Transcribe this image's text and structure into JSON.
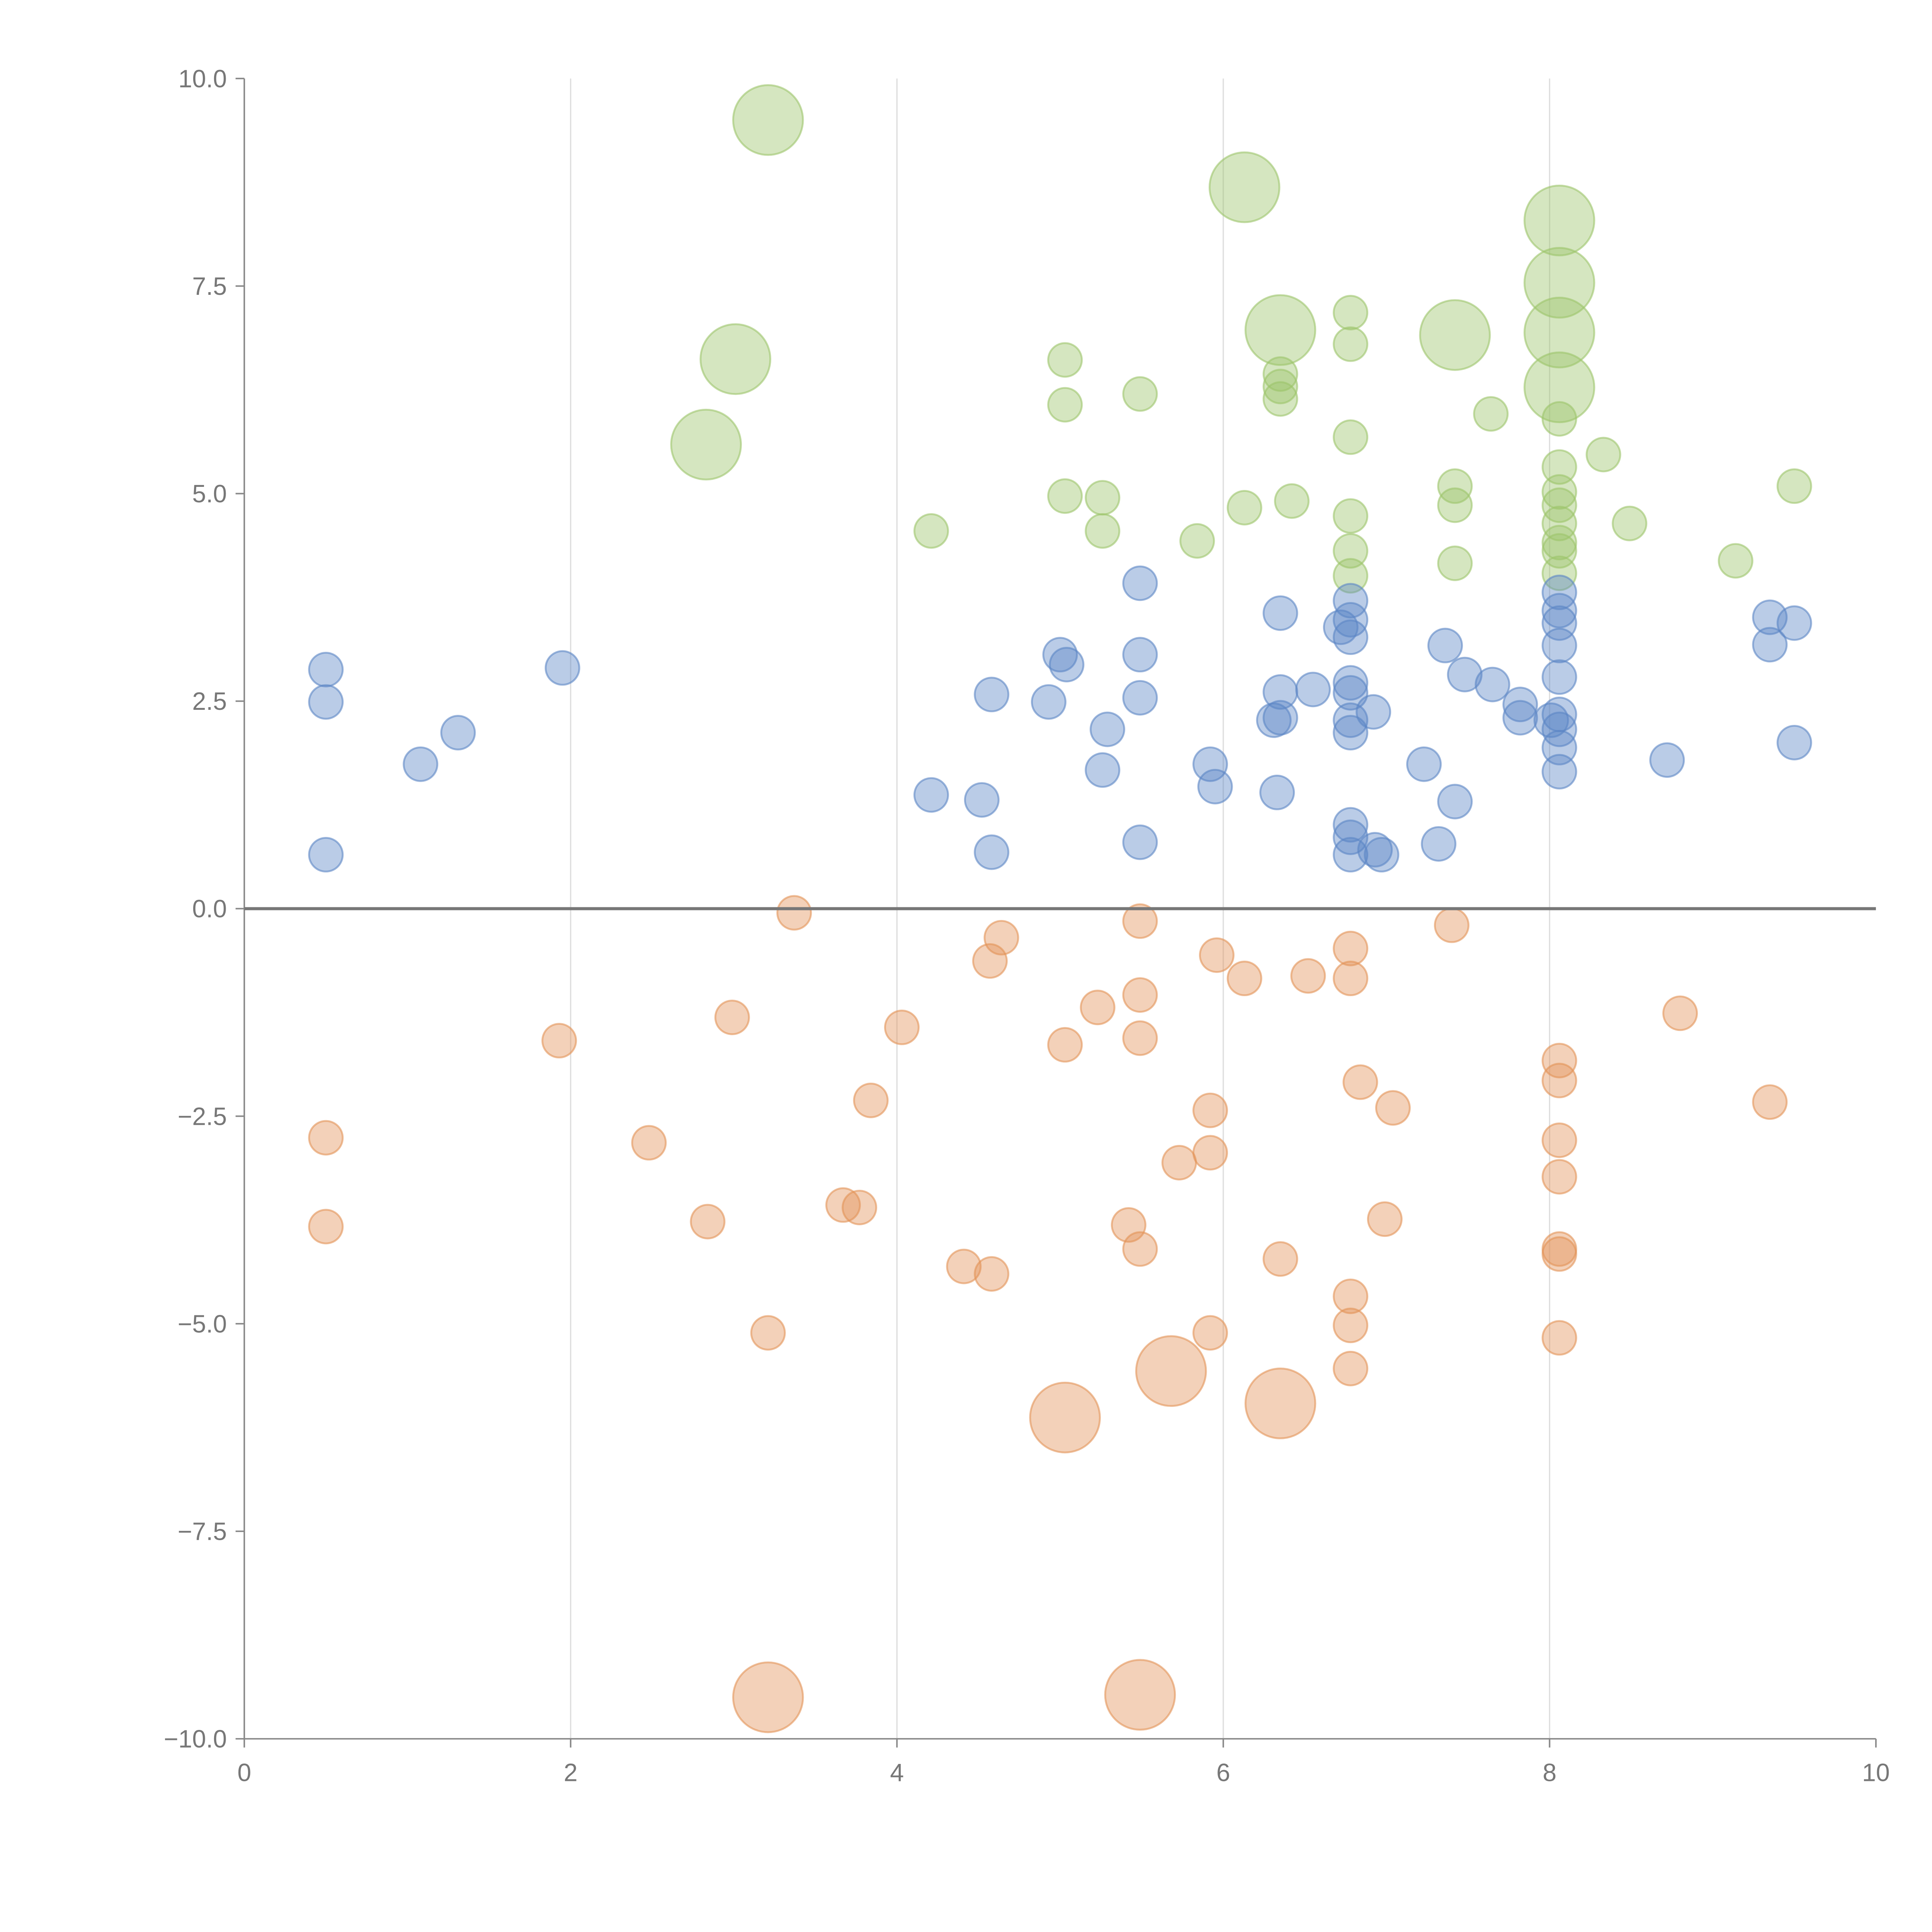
{
  "chart_data": {
    "type": "scatter",
    "title": "",
    "xlabel": "",
    "ylabel": "",
    "xlim": [
      0,
      10
    ],
    "ylim": [
      -10,
      10
    ],
    "x_ticks": [
      "0",
      "2",
      "4",
      "6",
      "8",
      "10"
    ],
    "x_tick_values": [
      0,
      2,
      4,
      6,
      8,
      10
    ],
    "y_ticks": [
      "10.0",
      "7.5",
      "5.0",
      "2.5",
      "0.0",
      "−2.5",
      "−5.0",
      "−7.5",
      "−10.0"
    ],
    "y_tick_values": [
      10,
      7.5,
      5,
      2.5,
      0,
      -2.5,
      -5,
      -7.5,
      -10
    ],
    "grid": "vertical",
    "reference_line_y": 0,
    "series": [
      {
        "name": "green",
        "color": "#9cc46a",
        "points": [
          [
            3.21,
            9.5,
            2
          ],
          [
            6.13,
            8.69,
            2
          ],
          [
            8.06,
            8.29,
            2
          ],
          [
            8.06,
            7.54,
            2
          ],
          [
            6.35,
            6.97,
            2
          ],
          [
            7.42,
            6.91,
            2
          ],
          [
            8.06,
            6.94,
            2
          ],
          [
            8.06,
            6.28,
            2
          ],
          [
            3.01,
            6.62,
            2
          ],
          [
            2.83,
            5.59,
            2
          ],
          [
            6.78,
            7.18,
            1
          ],
          [
            6.78,
            6.8,
            1
          ],
          [
            5.03,
            6.61,
            1
          ],
          [
            5.03,
            6.07,
            1
          ],
          [
            5.49,
            6.2,
            1
          ],
          [
            6.35,
            6.44,
            1
          ],
          [
            6.35,
            6.14,
            1
          ],
          [
            6.35,
            6.29,
            1
          ],
          [
            7.64,
            5.96,
            1
          ],
          [
            6.78,
            5.68,
            1
          ],
          [
            8.06,
            5.9,
            1
          ],
          [
            8.33,
            5.47,
            1
          ],
          [
            8.06,
            5.32,
            1
          ],
          [
            7.42,
            5.09,
            1
          ],
          [
            7.42,
            4.86,
            1
          ],
          [
            9.5,
            5.09,
            1
          ],
          [
            5.03,
            4.97,
            1
          ],
          [
            5.26,
            4.95,
            1
          ],
          [
            6.13,
            4.83,
            1
          ],
          [
            6.42,
            4.91,
            1
          ],
          [
            8.06,
            5.02,
            1
          ],
          [
            8.06,
            4.86,
            1
          ],
          [
            8.06,
            4.64,
            1
          ],
          [
            8.06,
            4.41,
            1
          ],
          [
            8.06,
            4.31,
            1
          ],
          [
            6.78,
            4.73,
            1
          ],
          [
            8.49,
            4.64,
            1
          ],
          [
            4.21,
            4.55,
            1
          ],
          [
            5.26,
            4.55,
            1
          ],
          [
            5.84,
            4.43,
            1
          ],
          [
            6.78,
            4.31,
            1
          ],
          [
            6.78,
            4.01,
            1
          ],
          [
            7.42,
            4.16,
            1
          ],
          [
            9.14,
            4.19,
            1
          ],
          [
            8.06,
            4.04,
            1
          ]
        ]
      },
      {
        "name": "blue",
        "color": "#5b86c5",
        "points": [
          [
            0.5,
            2.88,
            1
          ],
          [
            0.5,
            2.49,
            1
          ],
          [
            0.5,
            0.65,
            1
          ],
          [
            1.08,
            1.74,
            1
          ],
          [
            1.31,
            2.12,
            1
          ],
          [
            1.95,
            2.9,
            1
          ],
          [
            4.21,
            1.37,
            1
          ],
          [
            4.52,
            1.31,
            1
          ],
          [
            4.58,
            0.68,
            1
          ],
          [
            4.58,
            2.58,
            1
          ],
          [
            4.93,
            2.49,
            1
          ],
          [
            5.0,
            3.06,
            1
          ],
          [
            5.04,
            2.94,
            1
          ],
          [
            5.26,
            1.67,
            1
          ],
          [
            5.29,
            2.16,
            1
          ],
          [
            5.49,
            3.92,
            1
          ],
          [
            5.49,
            3.06,
            1
          ],
          [
            5.49,
            2.54,
            1
          ],
          [
            5.49,
            0.8,
            1
          ],
          [
            5.92,
            1.74,
            1
          ],
          [
            5.95,
            1.47,
            1
          ],
          [
            6.33,
            1.4,
            1
          ],
          [
            6.31,
            2.27,
            1
          ],
          [
            6.35,
            2.3,
            1
          ],
          [
            6.35,
            2.61,
            1
          ],
          [
            6.35,
            3.56,
            1
          ],
          [
            6.55,
            2.64,
            1
          ],
          [
            6.72,
            3.39,
            1
          ],
          [
            6.78,
            3.71,
            1
          ],
          [
            6.78,
            3.48,
            1
          ],
          [
            6.78,
            3.27,
            1
          ],
          [
            6.78,
            2.72,
            1
          ],
          [
            6.78,
            2.6,
            1
          ],
          [
            6.78,
            2.27,
            1
          ],
          [
            6.78,
            2.12,
            1
          ],
          [
            6.78,
            1.01,
            1
          ],
          [
            6.78,
            0.86,
            1
          ],
          [
            6.78,
            0.65,
            1
          ],
          [
            6.92,
            2.37,
            1
          ],
          [
            6.93,
            0.71,
            1
          ],
          [
            6.97,
            0.65,
            1
          ],
          [
            7.23,
            1.74,
            1
          ],
          [
            7.32,
            0.78,
            1
          ],
          [
            7.36,
            3.17,
            1
          ],
          [
            7.42,
            1.29,
            1
          ],
          [
            7.48,
            2.82,
            1
          ],
          [
            7.65,
            2.7,
            1
          ],
          [
            7.82,
            2.46,
            1
          ],
          [
            7.82,
            2.3,
            1
          ],
          [
            8.01,
            2.27,
            1
          ],
          [
            8.06,
            3.81,
            1
          ],
          [
            8.06,
            3.59,
            1
          ],
          [
            8.06,
            3.44,
            1
          ],
          [
            8.06,
            3.17,
            1
          ],
          [
            8.06,
            2.79,
            1
          ],
          [
            8.06,
            2.34,
            1
          ],
          [
            8.06,
            2.16,
            1
          ],
          [
            8.06,
            1.94,
            1
          ],
          [
            8.06,
            1.65,
            1
          ],
          [
            8.72,
            1.79,
            1
          ],
          [
            9.35,
            3.51,
            1
          ],
          [
            9.35,
            3.18,
            1
          ],
          [
            9.5,
            3.44,
            1
          ],
          [
            9.5,
            2.0,
            1
          ]
        ]
      },
      {
        "name": "orange",
        "color": "#e39257",
        "points": [
          [
            5.03,
            -6.13,
            2
          ],
          [
            5.68,
            -5.57,
            2
          ],
          [
            6.35,
            -5.96,
            2
          ],
          [
            3.21,
            -9.5,
            2
          ],
          [
            5.49,
            -9.47,
            2
          ],
          [
            3.37,
            -0.05,
            1
          ],
          [
            5.49,
            -0.15,
            1
          ],
          [
            4.64,
            -0.35,
            1
          ],
          [
            4.57,
            -0.63,
            1
          ],
          [
            5.96,
            -0.56,
            1
          ],
          [
            6.13,
            -0.84,
            1
          ],
          [
            6.52,
            -0.81,
            1
          ],
          [
            6.78,
            -0.48,
            1
          ],
          [
            6.78,
            -0.84,
            1
          ],
          [
            7.4,
            -0.2,
            1
          ],
          [
            5.23,
            -1.19,
            1
          ],
          [
            5.49,
            -1.04,
            1
          ],
          [
            5.49,
            -1.56,
            1
          ],
          [
            5.03,
            -1.64,
            1
          ],
          [
            4.03,
            -1.43,
            1
          ],
          [
            2.99,
            -1.31,
            1
          ],
          [
            1.93,
            -1.59,
            1
          ],
          [
            8.8,
            -1.26,
            1
          ],
          [
            8.06,
            -1.83,
            1
          ],
          [
            8.06,
            -2.07,
            1
          ],
          [
            6.84,
            -2.09,
            1
          ],
          [
            7.04,
            -2.4,
            1
          ],
          [
            3.84,
            -2.31,
            1
          ],
          [
            9.35,
            -2.33,
            1
          ],
          [
            5.92,
            -2.43,
            1
          ],
          [
            0.5,
            -2.76,
            1
          ],
          [
            2.48,
            -2.82,
            1
          ],
          [
            8.06,
            -2.79,
            1
          ],
          [
            5.92,
            -2.94,
            1
          ],
          [
            5.73,
            -3.06,
            1
          ],
          [
            8.06,
            -3.23,
            1
          ],
          [
            3.67,
            -3.57,
            1
          ],
          [
            3.77,
            -3.6,
            1
          ],
          [
            2.84,
            -3.77,
            1
          ],
          [
            0.5,
            -3.83,
            1
          ],
          [
            6.99,
            -3.74,
            1
          ],
          [
            5.42,
            -3.81,
            1
          ],
          [
            5.49,
            -4.1,
            1
          ],
          [
            8.06,
            -4.1,
            1
          ],
          [
            8.06,
            -4.16,
            1
          ],
          [
            6.35,
            -4.22,
            1
          ],
          [
            4.41,
            -4.31,
            1
          ],
          [
            4.58,
            -4.4,
            1
          ],
          [
            6.78,
            -4.67,
            1
          ],
          [
            6.78,
            -5.02,
            1
          ],
          [
            5.92,
            -5.11,
            1
          ],
          [
            3.21,
            -5.11,
            1
          ],
          [
            8.06,
            -5.17,
            1
          ],
          [
            6.78,
            -5.54,
            1
          ]
        ]
      }
    ]
  }
}
